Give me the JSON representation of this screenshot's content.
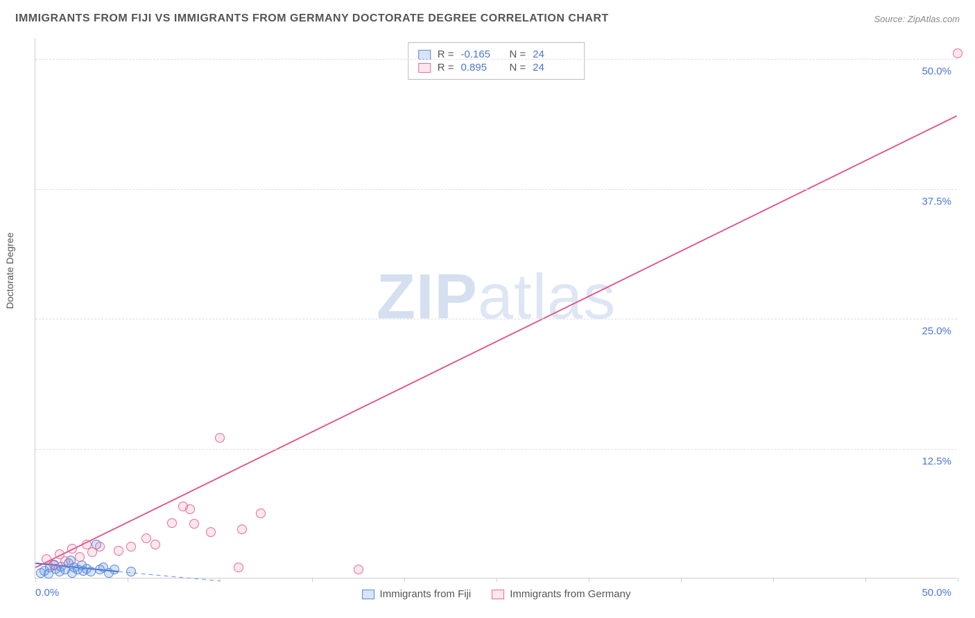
{
  "title": "IMMIGRANTS FROM FIJI VS IMMIGRANTS FROM GERMANY DOCTORATE DEGREE CORRELATION CHART",
  "source": "Source: ZipAtlas.com",
  "watermark_zip": "ZIP",
  "watermark_atlas": "atlas",
  "chart": {
    "type": "scatter",
    "xlim": [
      0,
      50
    ],
    "ylim": [
      0,
      52
    ],
    "x_min_label": "0.0%",
    "x_max_label": "50.0%",
    "y_axis_title": "Doctorate Degree",
    "y_ticks": [
      {
        "v": 12.5,
        "label": "12.5%"
      },
      {
        "v": 25.0,
        "label": "25.0%"
      },
      {
        "v": 37.5,
        "label": "37.5%"
      },
      {
        "v": 50.0,
        "label": "50.0%"
      }
    ],
    "x_tick_positions": [
      0,
      5,
      10,
      15,
      20,
      25,
      30,
      35,
      40,
      45,
      50
    ],
    "background_color": "#ffffff",
    "grid_color": "#dddddd",
    "series": [
      {
        "id": "fiji",
        "label": "Immigrants from Fiji",
        "color_fill": "rgba(99,148,230,0.25)",
        "color_stroke": "#5a88d8",
        "R": "-0.165",
        "N": "24",
        "trend": {
          "x1": 0,
          "y1": 1.4,
          "x2": 4.5,
          "y2": 0.6,
          "dashed": false,
          "color": "#3d63c9",
          "width": 2
        },
        "trend_ext": {
          "x1": 4.5,
          "y1": 0.6,
          "x2": 10,
          "y2": -0.3,
          "dashed": true,
          "color": "#8aa7e0",
          "width": 1.3
        },
        "points": [
          {
            "x": 0.3,
            "y": 0.5
          },
          {
            "x": 0.5,
            "y": 0.7
          },
          {
            "x": 0.7,
            "y": 0.4
          },
          {
            "x": 0.8,
            "y": 1.0
          },
          {
            "x": 1.0,
            "y": 1.3
          },
          {
            "x": 1.1,
            "y": 0.9
          },
          {
            "x": 1.3,
            "y": 0.6
          },
          {
            "x": 1.4,
            "y": 1.1
          },
          {
            "x": 1.6,
            "y": 0.8
          },
          {
            "x": 1.8,
            "y": 1.4
          },
          {
            "x": 2.0,
            "y": 0.5
          },
          {
            "x": 2.1,
            "y": 1.0
          },
          {
            "x": 2.3,
            "y": 0.8
          },
          {
            "x": 2.5,
            "y": 1.2
          },
          {
            "x": 2.6,
            "y": 0.7
          },
          {
            "x": 2.8,
            "y": 0.9
          },
          {
            "x": 3.0,
            "y": 0.6
          },
          {
            "x": 3.3,
            "y": 3.2
          },
          {
            "x": 3.5,
            "y": 0.8
          },
          {
            "x": 3.7,
            "y": 1.0
          },
          {
            "x": 4.0,
            "y": 0.5
          },
          {
            "x": 4.3,
            "y": 0.8
          },
          {
            "x": 5.2,
            "y": 0.6
          },
          {
            "x": 1.9,
            "y": 1.7
          }
        ]
      },
      {
        "id": "germany",
        "label": "Immigrants from Germany",
        "color_fill": "rgba(240,120,160,0.18)",
        "color_stroke": "#e86b9a",
        "R": "0.895",
        "N": "24",
        "trend": {
          "x1": 0,
          "y1": 1.0,
          "x2": 50,
          "y2": 44.5,
          "dashed": false,
          "color": "#e34b85",
          "width": 1.8
        },
        "points": [
          {
            "x": 0.6,
            "y": 1.8
          },
          {
            "x": 1.0,
            "y": 1.2
          },
          {
            "x": 1.3,
            "y": 2.3
          },
          {
            "x": 1.6,
            "y": 1.6
          },
          {
            "x": 2.0,
            "y": 2.8
          },
          {
            "x": 2.4,
            "y": 2.0
          },
          {
            "x": 2.8,
            "y": 3.2
          },
          {
            "x": 3.1,
            "y": 2.5
          },
          {
            "x": 3.5,
            "y": 3.0
          },
          {
            "x": 4.5,
            "y": 2.6
          },
          {
            "x": 5.2,
            "y": 3.0
          },
          {
            "x": 6.0,
            "y": 3.8
          },
          {
            "x": 6.5,
            "y": 3.2
          },
          {
            "x": 7.4,
            "y": 5.3
          },
          {
            "x": 8.0,
            "y": 6.9
          },
          {
            "x": 8.4,
            "y": 6.6
          },
          {
            "x": 8.6,
            "y": 5.2
          },
          {
            "x": 9.5,
            "y": 4.4
          },
          {
            "x": 10.0,
            "y": 13.5
          },
          {
            "x": 11.0,
            "y": 1.0
          },
          {
            "x": 11.2,
            "y": 4.7
          },
          {
            "x": 12.2,
            "y": 6.2
          },
          {
            "x": 17.5,
            "y": 0.8
          },
          {
            "x": 50.0,
            "y": 50.5
          }
        ]
      }
    ]
  },
  "legend_top_labels": {
    "R": "R =",
    "N": "N ="
  }
}
